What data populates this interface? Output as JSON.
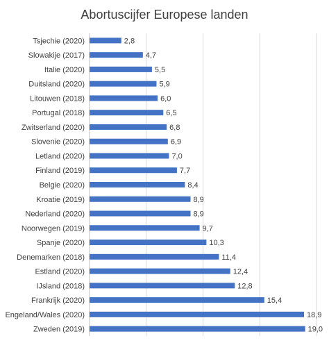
{
  "chart_data": {
    "type": "bar",
    "orientation": "horizontal",
    "title": "Abortuscijfer Europese landen",
    "categories": [
      "Tsjechie (2020)",
      "Slowakije (2017)",
      "Italie (2020)",
      "Duitsland (2020)",
      "Litouwen (2018)",
      "Portugal (2018)",
      "Zwitserland (2020)",
      "Slovenie (2020)",
      "Letland (2020)",
      "Finland (2019)",
      "Belgie (2020)",
      "Kroatie (2019)",
      "Nederland (2020)",
      "Noorwegen (2019)",
      "Spanje (2020)",
      "Denemarken (2018)",
      "Estland (2020)",
      "IJsland (2018)",
      "Frankrijk (2020)",
      "Engeland/Wales (2020)",
      "Zweden (2019)"
    ],
    "values": [
      2.8,
      4.7,
      5.5,
      5.9,
      6.0,
      6.5,
      6.8,
      6.9,
      7.0,
      7.7,
      8.4,
      8.9,
      8.9,
      9.7,
      10.3,
      11.4,
      12.4,
      12.8,
      15.4,
      18.9,
      19.0
    ],
    "value_labels": [
      "2,8",
      "4,7",
      "5,5",
      "5,9",
      "6,0",
      "6,5",
      "6,8",
      "6,9",
      "7,0",
      "7,7",
      "8,4",
      "8,9",
      "8,9",
      "9,7",
      "10,3",
      "11,4",
      "12,4",
      "12,8",
      "15,4",
      "18,9",
      "19,0"
    ],
    "xlim": [
      0,
      20
    ],
    "grid": true,
    "colors": {
      "bar": "#4472C4",
      "grid": "#D9D9D9",
      "text": "#404040"
    }
  }
}
